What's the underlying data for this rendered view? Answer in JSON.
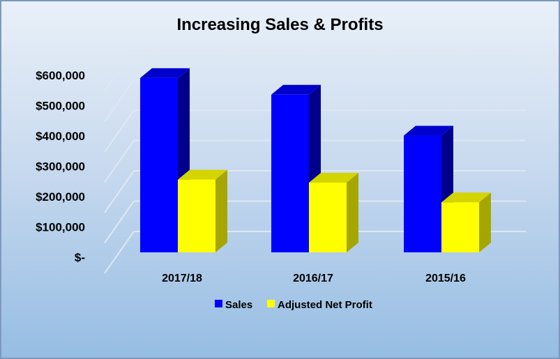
{
  "chart_data": {
    "type": "bar",
    "title": "Increasing Sales & Profits",
    "categories": [
      "2017/18",
      "2016/17",
      "2015/16"
    ],
    "series": [
      {
        "name": "Sales",
        "values": [
          575000,
          520000,
          385000
        ],
        "color": "#0000ff",
        "side_color": "#00008b",
        "top_color": "#0000cd"
      },
      {
        "name": "Adjusted Net Profit",
        "values": [
          240000,
          230000,
          165000
        ],
        "color": "#ffff00",
        "side_color": "#a6a600",
        "top_color": "#d4d400"
      }
    ],
    "y_ticks": [
      "$-",
      "$100,000",
      "$200,000",
      "$300,000",
      "$400,000",
      "$500,000",
      "$600,000"
    ],
    "ylim": [
      0,
      600000
    ],
    "grid": true,
    "legend_position": "bottom",
    "style": "3d-column"
  }
}
